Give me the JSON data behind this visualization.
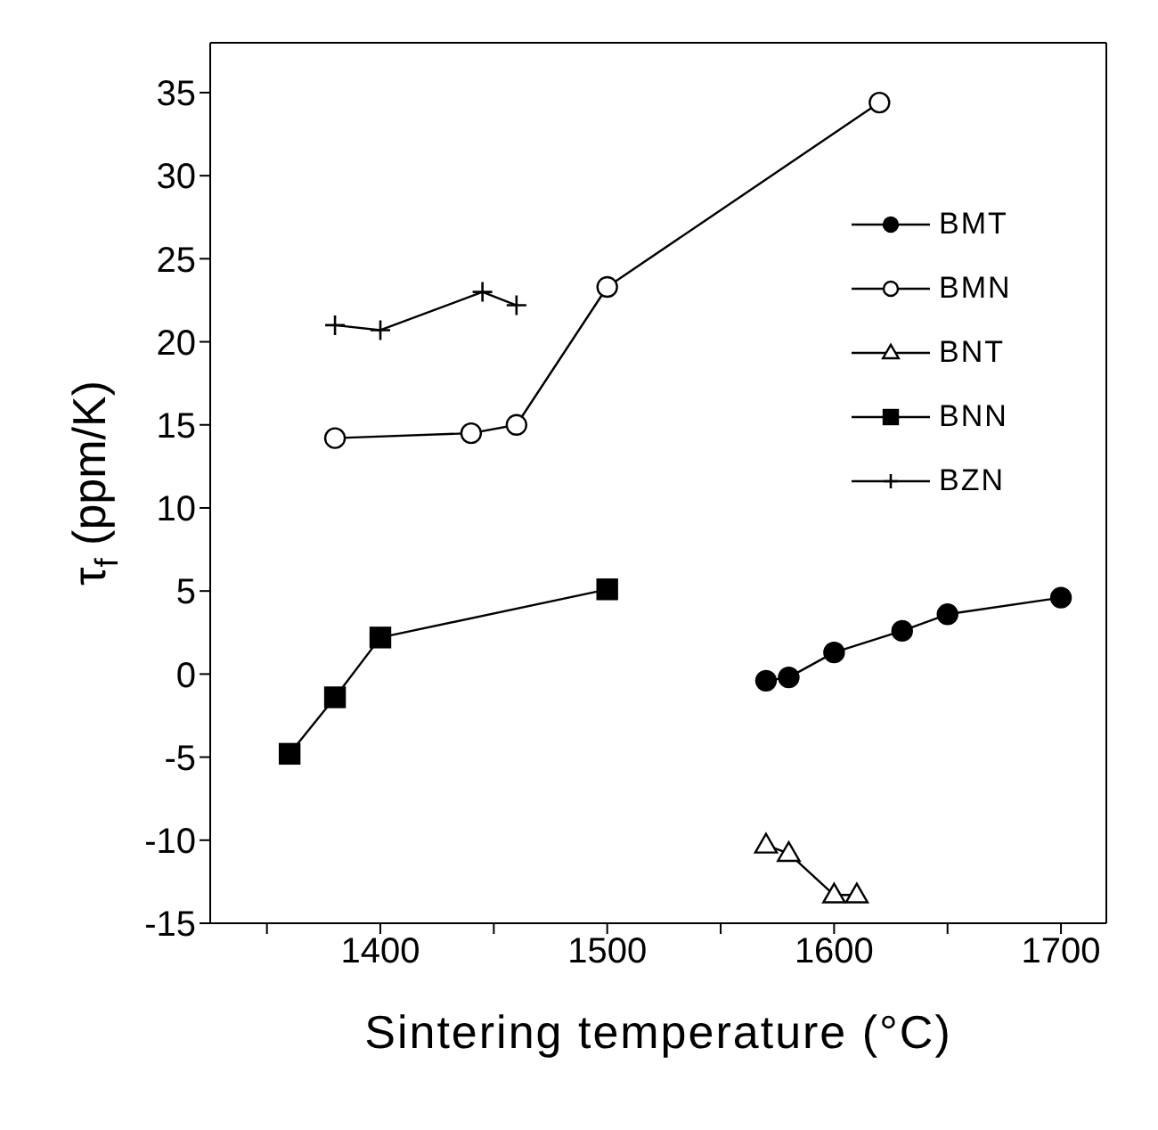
{
  "chart_data": {
    "type": "line",
    "xlabel": "Sintering temperature (°C)",
    "ylabel": "τ$_{f}$ (ppm/K)",
    "xlim": [
      1325,
      1720
    ],
    "xticks": [
      {
        "value": 1350,
        "label": null
      },
      1400,
      {
        "value": 1450,
        "label": null
      },
      1500,
      {
        "value": 1550,
        "label": null
      },
      1600,
      {
        "value": 1650,
        "label": null
      },
      1700
    ],
    "ylim": [
      -15,
      38
    ],
    "yticks": [
      -15,
      -10,
      -5,
      0,
      5,
      10,
      15,
      20,
      25,
      30,
      35
    ],
    "legend": "top right",
    "grid": false,
    "line_style": "solid",
    "series": [
      {
        "name": "BMT",
        "color": "#000000",
        "marker": "circle",
        "x": [
          1570,
          1580,
          1600,
          1630,
          1650,
          1700
        ],
        "values": [
          -0.4,
          -0.2,
          1.3,
          2.6,
          3.6,
          4.6
        ]
      },
      {
        "name": "BMN",
        "color": "#000000",
        "marker": "circle",
        "x": [
          1380,
          1440,
          1460,
          1500,
          1620
        ],
        "values": [
          14.2,
          14.5,
          15,
          23.3,
          34.4
        ]
      },
      {
        "name": "BNT",
        "color": "#000000",
        "marker": "triangle",
        "x": [
          1570,
          1580,
          1600,
          1610
        ],
        "values": [
          -10.3,
          -10.8,
          -13.3,
          -13.3
        ]
      },
      {
        "name": "BNN",
        "color": "#000000",
        "marker": "square",
        "x": [
          1360,
          1380,
          1400,
          1500
        ],
        "values": [
          -4.8,
          -1.4,
          2.2,
          5.1
        ]
      },
      {
        "name": "BZN",
        "color": "#000000",
        "marker": "cross",
        "x": [
          1380,
          1400,
          1445,
          1460
        ],
        "values": [
          21,
          20.7,
          23,
          22.2
        ]
      }
    ]
  }
}
